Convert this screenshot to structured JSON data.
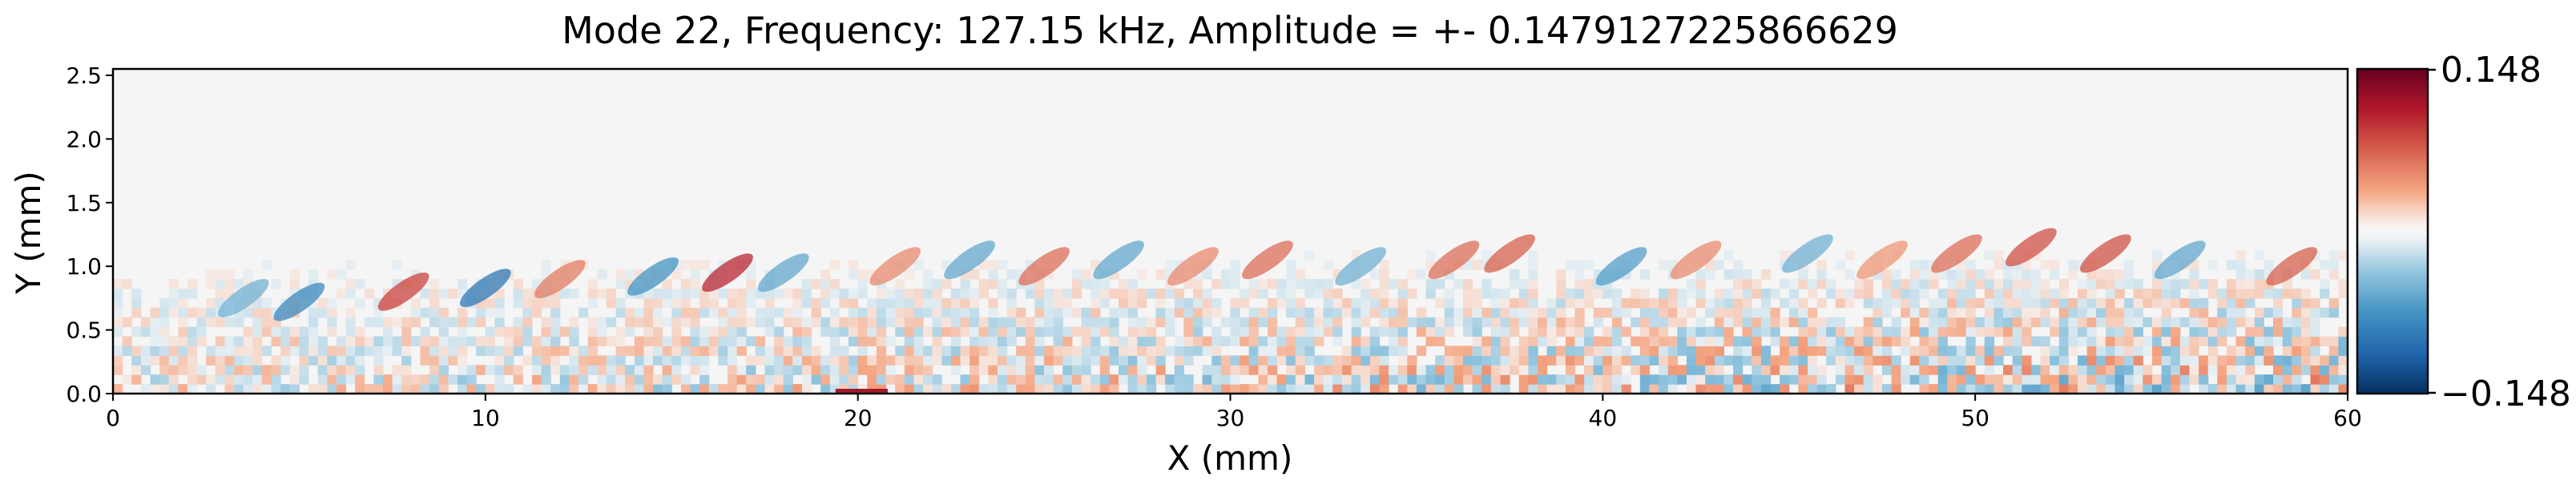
{
  "chart_data": {
    "type": "heatmap",
    "title": "Mode 22, Frequency: 127.15 kHz, Amplitude = +- 0.1479127225866629",
    "xlabel": "X (mm)",
    "ylabel": "Y (mm)",
    "xlim": [
      0,
      60
    ],
    "ylim": [
      0,
      2.55
    ],
    "x_ticks": [
      0,
      10,
      20,
      30,
      40,
      50,
      60
    ],
    "x_tick_labels": [
      "0",
      "10",
      "20",
      "30",
      "40",
      "50",
      "60"
    ],
    "y_ticks": [
      0.0,
      0.5,
      1.0,
      1.5,
      2.0,
      2.5
    ],
    "y_tick_labels": [
      "0.0",
      "0.5",
      "1.0",
      "1.5",
      "2.0",
      "2.5"
    ],
    "colormap": "RdBu_r",
    "color_range": [
      -0.148,
      0.148
    ],
    "colorbar_labels": [
      "0.148",
      "−0.148"
    ],
    "grid": false,
    "field_description": {
      "near_wall_band_y_max": 0.5,
      "wave_band_y": [
        0.5,
        1.2
      ],
      "quiet_above_y": 1.5,
      "wave_packets": [
        {
          "x": 3.5,
          "y": 0.75,
          "sign": -1,
          "strength": 0.35
        },
        {
          "x": 5.0,
          "y": 0.72,
          "sign": -1,
          "strength": 0.55
        },
        {
          "x": 7.8,
          "y": 0.8,
          "sign": 1,
          "strength": 0.6
        },
        {
          "x": 10.0,
          "y": 0.83,
          "sign": -1,
          "strength": 0.65
        },
        {
          "x": 12.0,
          "y": 0.9,
          "sign": 1,
          "strength": 0.4
        },
        {
          "x": 14.5,
          "y": 0.92,
          "sign": -1,
          "strength": 0.5
        },
        {
          "x": 16.5,
          "y": 0.95,
          "sign": 1,
          "strength": 0.7
        },
        {
          "x": 18.0,
          "y": 0.95,
          "sign": -1,
          "strength": 0.4
        },
        {
          "x": 21.0,
          "y": 1.0,
          "sign": 1,
          "strength": 0.35
        },
        {
          "x": 23.0,
          "y": 1.05,
          "sign": -1,
          "strength": 0.4
        },
        {
          "x": 25.0,
          "y": 1.0,
          "sign": 1,
          "strength": 0.45
        },
        {
          "x": 27.0,
          "y": 1.05,
          "sign": -1,
          "strength": 0.4
        },
        {
          "x": 29.0,
          "y": 1.0,
          "sign": 1,
          "strength": 0.35
        },
        {
          "x": 31.0,
          "y": 1.05,
          "sign": 1,
          "strength": 0.45
        },
        {
          "x": 33.5,
          "y": 1.0,
          "sign": -1,
          "strength": 0.35
        },
        {
          "x": 36.0,
          "y": 1.05,
          "sign": 1,
          "strength": 0.45
        },
        {
          "x": 37.5,
          "y": 1.1,
          "sign": 1,
          "strength": 0.5
        },
        {
          "x": 40.5,
          "y": 1.0,
          "sign": -1,
          "strength": 0.45
        },
        {
          "x": 42.5,
          "y": 1.05,
          "sign": 1,
          "strength": 0.35
        },
        {
          "x": 45.5,
          "y": 1.1,
          "sign": -1,
          "strength": 0.35
        },
        {
          "x": 47.5,
          "y": 1.05,
          "sign": 1,
          "strength": 0.3
        },
        {
          "x": 49.5,
          "y": 1.1,
          "sign": 1,
          "strength": 0.45
        },
        {
          "x": 51.5,
          "y": 1.15,
          "sign": 1,
          "strength": 0.55
        },
        {
          "x": 53.5,
          "y": 1.1,
          "sign": 1,
          "strength": 0.55
        },
        {
          "x": 55.5,
          "y": 1.05,
          "sign": -1,
          "strength": 0.4
        },
        {
          "x": 58.5,
          "y": 1.0,
          "sign": 1,
          "strength": 0.5
        }
      ],
      "wall_marker": {
        "x_range": [
          19.4,
          20.8
        ],
        "y": 0.0,
        "sign": 1
      }
    }
  }
}
